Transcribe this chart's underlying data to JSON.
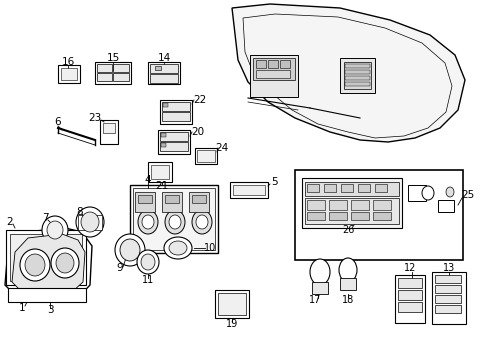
{
  "bg_color": "#ffffff",
  "lc": "#000000",
  "lw": 0.8,
  "fig_w": 4.89,
  "fig_h": 3.6,
  "dpi": 100
}
